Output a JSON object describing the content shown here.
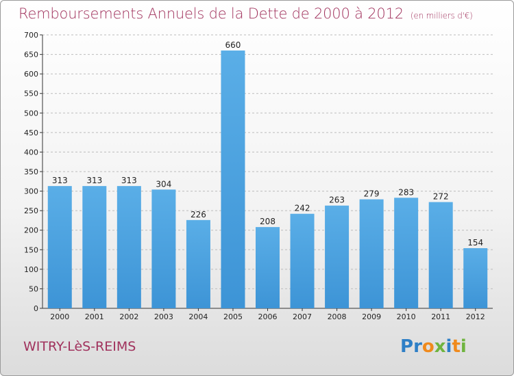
{
  "title": "Remboursements Annuels de la Dette de 2000 à 2012",
  "unit": "(en milliers d'€)",
  "city": "WITRY-LèS-REIMS",
  "logo": {
    "letters": [
      {
        "ch": "P",
        "color": "#2e7fc6"
      },
      {
        "ch": "r",
        "color": "#2e7fc6"
      },
      {
        "ch": "o",
        "color": "#f08a1c"
      },
      {
        "ch": "x",
        "color": "#6fb43f"
      },
      {
        "ch": "i",
        "color": "#2e7fc6"
      },
      {
        "ch": "t",
        "color": "#f08a1c"
      },
      {
        "ch": "i",
        "color": "#6fb43f"
      }
    ]
  },
  "colors": {
    "bar": "#3d94d6",
    "bar_top": "#5aaee7",
    "title": "#a0315c",
    "grid": "#bcbcbc"
  },
  "chart_data": {
    "type": "bar",
    "title": "Remboursements Annuels de la Dette de 2000 à 2012",
    "xlabel": "",
    "ylabel": "",
    "categories": [
      "2000",
      "2001",
      "2002",
      "2003",
      "2004",
      "2005",
      "2006",
      "2007",
      "2008",
      "2009",
      "2010",
      "2011",
      "2012"
    ],
    "values": [
      313,
      313,
      313,
      304,
      226,
      660,
      208,
      242,
      263,
      279,
      283,
      272,
      154
    ],
    "ylim": [
      0,
      700
    ],
    "yticks": [
      0,
      50,
      100,
      150,
      200,
      250,
      300,
      350,
      400,
      450,
      500,
      550,
      600,
      650,
      700
    ],
    "grid": true,
    "data_labels": true
  }
}
